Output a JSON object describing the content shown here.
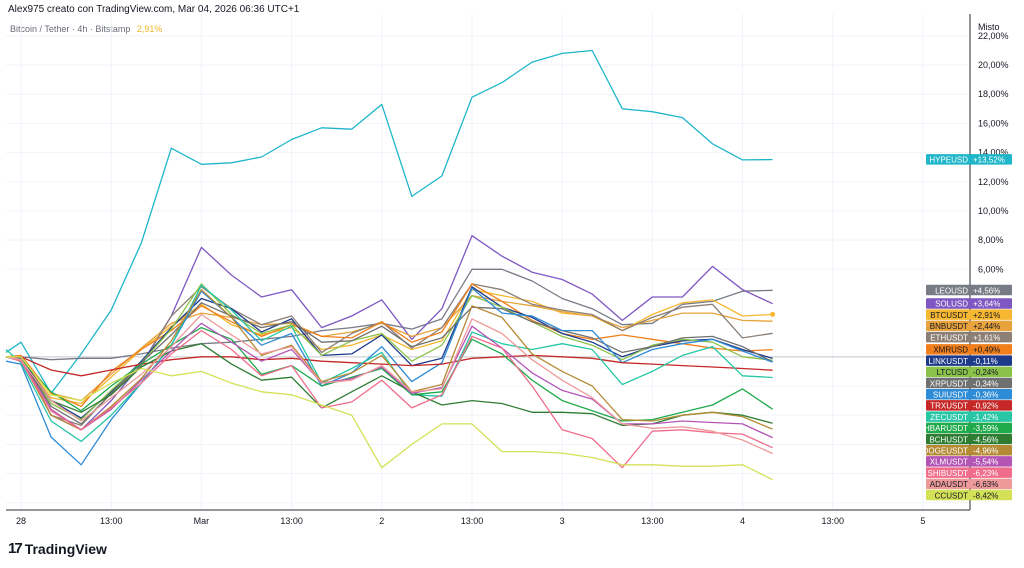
{
  "header": {
    "author_line": "Alex975 creato con TradingView.com, Mar 04, 2026 06:36 UTC+1",
    "symbol_line": "Bitcoin / Tether · 4h · Bitstamp",
    "symbol_change": "2,91%"
  },
  "brand": {
    "name": "TradingView",
    "logo_glyph": "17"
  },
  "chart_data": {
    "type": "line",
    "title": "Bitcoin / Tether · 4h · Bitstamp",
    "scale_mode": "Misto",
    "xlabel": "",
    "ylabel": "",
    "ylim": [
      -10.5,
      23.5
    ],
    "y_ticks": [
      6,
      8,
      10,
      12,
      14,
      16,
      18,
      20,
      22
    ],
    "y_tick_labels": [
      "6,00%",
      "8,00%",
      "10,00%",
      "12,00%",
      "14,00%",
      "16,00%",
      "18,00%",
      "20,00%",
      "22,00%"
    ],
    "x_ticks": [
      0,
      6,
      12,
      18,
      24,
      30,
      36,
      42,
      48,
      54,
      60
    ],
    "x_tick_labels": [
      "28",
      "13:00",
      "Mar",
      "13:00",
      "2",
      "13:00",
      "3",
      "13:00",
      "4",
      "13:00",
      "5"
    ],
    "xlim": [
      -1,
      63
    ],
    "series": [
      {
        "name": "HYPEUSD",
        "label": "+13,52%",
        "color": "#1fb6c9",
        "x": [
          -1,
          0,
          2,
          4,
          6,
          8,
          10,
          12,
          14,
          16,
          18,
          20,
          22,
          24,
          26,
          28,
          30,
          32,
          34,
          36,
          38,
          40,
          42,
          44,
          46,
          48,
          50
        ],
        "values": [
          0.3,
          1.0,
          -2.5,
          0.2,
          3.2,
          7.8,
          14.3,
          13.2,
          13.3,
          13.7,
          14.9,
          15.7,
          15.6,
          17.3,
          11.0,
          12.4,
          17.8,
          18.8,
          20.2,
          20.8,
          21.0,
          17.0,
          16.8,
          16.4,
          14.6,
          13.5,
          13.52
        ]
      },
      {
        "name": "LEOUSD",
        "label": "+4,56%",
        "color": "#787b86",
        "x": [
          -1,
          0,
          2,
          4,
          6,
          8,
          10,
          12,
          14,
          16,
          18,
          20,
          22,
          24,
          26,
          28,
          30,
          32,
          34,
          36,
          38,
          40,
          42,
          44,
          46,
          48,
          50
        ],
        "values": [
          0,
          0,
          -0.2,
          -0.1,
          -0.1,
          0.2,
          0.6,
          0.9,
          1.0,
          1.2,
          1.4,
          1.8,
          2.0,
          2.3,
          1.9,
          2.6,
          6.0,
          6.0,
          5.2,
          4.0,
          3.3,
          2.2,
          2.3,
          3.6,
          3.8,
          4.5,
          4.56
        ]
      },
      {
        "name": "SOLUSD",
        "label": "+3,64%",
        "color": "#7e57c2",
        "x": [
          -1,
          0,
          2,
          4,
          6,
          8,
          10,
          12,
          14,
          16,
          18,
          20,
          22,
          24,
          26,
          28,
          30,
          32,
          34,
          36,
          38,
          40,
          42,
          44,
          46,
          48,
          50
        ],
        "values": [
          0,
          -0.2,
          -4.0,
          -5.0,
          -3.0,
          -0.5,
          2.8,
          7.5,
          5.6,
          4.1,
          4.6,
          2.0,
          2.8,
          3.9,
          1.2,
          3.3,
          8.3,
          6.9,
          5.8,
          5.3,
          4.3,
          2.5,
          4.1,
          4.1,
          6.2,
          4.6,
          3.64
        ]
      },
      {
        "name": "BTCUSDT",
        "label": "+2,91%",
        "color": "#f7b731",
        "x": [
          -1,
          0,
          2,
          4,
          6,
          8,
          10,
          12,
          14,
          16,
          18,
          20,
          22,
          24,
          26,
          28,
          30,
          32,
          34,
          36,
          38,
          40,
          42,
          44,
          46,
          48,
          50
        ],
        "values": [
          0,
          -0.1,
          -2.8,
          -3.2,
          -1.4,
          0.5,
          2.1,
          3.6,
          2.2,
          1.5,
          2.0,
          0.5,
          0.8,
          1.5,
          0.5,
          1.1,
          4.6,
          4.2,
          3.8,
          3.0,
          2.8,
          1.8,
          2.9,
          3.7,
          3.9,
          2.8,
          2.91
        ]
      },
      {
        "name": "BNBUSDT",
        "label": "+2,44%",
        "color": "#e8a33c",
        "x": [
          -1,
          0,
          2,
          4,
          6,
          8,
          10,
          12,
          14,
          16,
          18,
          20,
          22,
          24,
          26,
          28,
          30,
          32,
          34,
          36,
          38,
          40,
          42,
          44,
          46,
          48,
          50
        ],
        "values": [
          0,
          -0.1,
          -2.5,
          -3.0,
          -1.2,
          0.6,
          2.3,
          3.0,
          2.7,
          2.2,
          2.3,
          1.4,
          1.7,
          2.3,
          1.4,
          2.0,
          4.2,
          3.8,
          3.5,
          3.1,
          2.8,
          2.0,
          2.5,
          3.0,
          3.0,
          2.5,
          2.44
        ]
      },
      {
        "name": "ETHUSDT",
        "label": "+1,61%",
        "color": "#8c7f76",
        "x": [
          -1,
          0,
          2,
          4,
          6,
          8,
          10,
          12,
          14,
          16,
          18,
          20,
          22,
          24,
          26,
          28,
          30,
          32,
          34,
          36,
          38,
          40,
          42,
          44,
          46,
          48,
          50
        ],
        "values": [
          0,
          -0.2,
          -4.0,
          -4.7,
          -2.5,
          -0.6,
          2.8,
          4.8,
          3.3,
          2.2,
          2.8,
          0.3,
          1.6,
          2.4,
          0.6,
          2.0,
          5.0,
          4.6,
          3.6,
          3.2,
          2.9,
          1.8,
          2.7,
          3.4,
          3.6,
          1.3,
          1.61
        ]
      },
      {
        "name": "XMRUSD",
        "label": "+0,49%",
        "color": "#f07f1c",
        "x": [
          -1,
          0,
          2,
          4,
          6,
          8,
          10,
          12,
          14,
          16,
          18,
          20,
          22,
          24,
          26,
          28,
          30,
          32,
          34,
          36,
          38,
          40,
          42,
          44,
          46,
          48,
          50
        ],
        "values": [
          0,
          0.1,
          -2.5,
          -3.4,
          -1.0,
          0.5,
          1.8,
          3.5,
          2.4,
          1.4,
          2.2,
          1.4,
          1.3,
          2.4,
          1.0,
          1.7,
          5.0,
          3.8,
          2.5,
          1.6,
          1.2,
          1.5,
          1.2,
          0.9,
          0.6,
          0.4,
          0.49
        ]
      },
      {
        "name": "LINKUSDT",
        "label": "-0,11%",
        "color": "#1e3a8a",
        "x": [
          -1,
          0,
          2,
          4,
          6,
          8,
          10,
          12,
          14,
          16,
          18,
          20,
          22,
          24,
          26,
          28,
          30,
          32,
          34,
          36,
          38,
          40,
          42,
          44,
          46,
          48,
          50
        ],
        "values": [
          0,
          -0.1,
          -3.0,
          -4.2,
          -2.4,
          -0.3,
          2.0,
          4.0,
          3.3,
          1.7,
          2.6,
          0.1,
          0.2,
          1.5,
          -0.6,
          -0.1,
          4.8,
          3.4,
          2.7,
          1.6,
          1.0,
          0,
          0.7,
          1.1,
          1.2,
          0.5,
          -0.11
        ]
      },
      {
        "name": "LTCUSD",
        "label": "-0,24%",
        "color": "#8bc34a",
        "x": [
          -1,
          0,
          2,
          4,
          6,
          8,
          10,
          12,
          14,
          16,
          18,
          20,
          22,
          24,
          26,
          28,
          30,
          32,
          34,
          36,
          38,
          40,
          42,
          44,
          46,
          48,
          50
        ],
        "values": [
          0,
          -0.2,
          -3.2,
          -4.3,
          -2.3,
          -0.4,
          1.9,
          5.0,
          2.9,
          1.6,
          2.2,
          0.1,
          1.1,
          1.6,
          -0.3,
          0.8,
          4.2,
          3.4,
          2.4,
          1.4,
          0.8,
          -0.2,
          0.8,
          1.2,
          1.0,
          0,
          -0.24
        ]
      },
      {
        "name": "XRPUSDT",
        "label": "-0,34%",
        "color": "#707070",
        "x": [
          -1,
          0,
          2,
          4,
          6,
          8,
          10,
          12,
          14,
          16,
          18,
          20,
          22,
          24,
          26,
          28,
          30,
          32,
          34,
          36,
          38,
          40,
          42,
          44,
          46,
          48,
          50
        ],
        "values": [
          0,
          -0.1,
          -3.4,
          -4.6,
          -2.5,
          -0.4,
          1.5,
          3.7,
          2.8,
          2.0,
          2.4,
          1.0,
          1.1,
          2.1,
          0.7,
          1.3,
          3.4,
          3.3,
          2.4,
          1.8,
          1.3,
          0.3,
          0.7,
          1.3,
          1.4,
          0.7,
          -0.34
        ]
      },
      {
        "name": "SUIUSDT",
        "label": "-0,36%",
        "color": "#2e8bd6",
        "x": [
          -1,
          0,
          2,
          4,
          6,
          8,
          10,
          12,
          14,
          16,
          18,
          20,
          22,
          24,
          26,
          28,
          30,
          32,
          34,
          36,
          38,
          40,
          42,
          44,
          46,
          48,
          50
        ],
        "values": [
          -0.3,
          -0.5,
          -5.5,
          -7.4,
          -4.3,
          -1.8,
          0.8,
          4.5,
          2.7,
          0.8,
          1.6,
          -2.0,
          -1.1,
          0.7,
          -1.7,
          -0.4,
          4.7,
          3.0,
          2.8,
          1.8,
          1.8,
          -0.4,
          0.5,
          0.9,
          1.2,
          0.4,
          -0.36
        ]
      },
      {
        "name": "TRXUSDT",
        "label": "-0,92%",
        "color": "#c62828",
        "x": [
          -1,
          0,
          2,
          4,
          6,
          8,
          10,
          12,
          14,
          16,
          18,
          20,
          22,
          24,
          26,
          28,
          30,
          32,
          34,
          36,
          38,
          40,
          42,
          44,
          46,
          48,
          50
        ],
        "values": [
          0,
          0,
          -0.9,
          -1.3,
          -0.9,
          -0.5,
          -0.2,
          0,
          0,
          -0.2,
          -0.1,
          -0.3,
          -0.4,
          -0.5,
          -0.6,
          -0.5,
          -0.1,
          0,
          0.1,
          0,
          -0.1,
          -0.4,
          -0.5,
          -0.6,
          -0.7,
          -0.8,
          -0.92
        ]
      },
      {
        "name": "ZECUSDT",
        "label": "-1,42%",
        "color": "#26c6a6",
        "x": [
          -1,
          0,
          2,
          4,
          6,
          8,
          10,
          12,
          14,
          16,
          18,
          20,
          22,
          24,
          26,
          28,
          30,
          32,
          34,
          36,
          38,
          40,
          42,
          44,
          46,
          48,
          50
        ],
        "values": [
          0.5,
          -0.4,
          -4.4,
          -5.8,
          -4.0,
          -1.8,
          0.8,
          4.9,
          3.2,
          1.1,
          2.1,
          -1.8,
          -0.8,
          0.3,
          -2.6,
          -2.7,
          1.7,
          0.9,
          0.5,
          0.9,
          0.5,
          -1.9,
          -1.0,
          0.1,
          0.7,
          -1.3,
          -1.42
        ]
      },
      {
        "name": "HBARUSDT",
        "label": "-3,59%",
        "color": "#1faa4c",
        "x": [
          -1,
          0,
          2,
          4,
          6,
          8,
          10,
          12,
          14,
          16,
          18,
          20,
          22,
          24,
          26,
          28,
          30,
          32,
          34,
          36,
          38,
          40,
          42,
          44,
          46,
          48,
          50
        ],
        "values": [
          0,
          -0.2,
          -2.4,
          -3.7,
          -2.0,
          -0.5,
          0.8,
          2.0,
          1.2,
          -1.2,
          -0.6,
          -2.0,
          -1.4,
          -0.8,
          -2.6,
          -2.4,
          1.2,
          0.2,
          -1.6,
          -3.0,
          -3.7,
          -4.4,
          -4.3,
          -3.8,
          -3.3,
          -2.2,
          -3.59
        ]
      },
      {
        "name": "BCHUSDT",
        "label": "-4,56%",
        "color": "#2e7d32",
        "x": [
          -1,
          0,
          2,
          4,
          6,
          8,
          10,
          12,
          14,
          16,
          18,
          20,
          22,
          24,
          26,
          28,
          30,
          32,
          34,
          36,
          38,
          40,
          42,
          44,
          46,
          48,
          50
        ],
        "values": [
          0,
          -0.3,
          -3.0,
          -3.8,
          -2.6,
          -0.7,
          0.4,
          0.9,
          -0.5,
          -1.6,
          -1.4,
          -3.5,
          -2.4,
          -1.3,
          -2.4,
          -3.3,
          -3.0,
          -3.2,
          -3.8,
          -3.8,
          -3.9,
          -4.7,
          -4.6,
          -4.0,
          -3.8,
          -4.0,
          -4.56
        ]
      },
      {
        "name": "DOGEUSDT",
        "label": "-4,96%",
        "color": "#b58a34",
        "x": [
          -1,
          0,
          2,
          4,
          6,
          8,
          10,
          12,
          14,
          16,
          18,
          20,
          22,
          24,
          26,
          28,
          30,
          32,
          34,
          36,
          38,
          40,
          42,
          44,
          46,
          48,
          50
        ],
        "values": [
          0,
          -0.2,
          -4.0,
          -5.0,
          -3.4,
          -1.5,
          1.1,
          4.6,
          2.7,
          0.1,
          0.8,
          -1.7,
          -1.1,
          0.1,
          -2.4,
          -1.9,
          3.5,
          2.7,
          0.2,
          -1.0,
          -2.0,
          -4.3,
          -4.4,
          -4.0,
          -3.8,
          -4.1,
          -4.96
        ]
      },
      {
        "name": "XLMUSDT",
        "label": "-5,54%",
        "color": "#b455b6",
        "x": [
          -1,
          0,
          2,
          4,
          6,
          8,
          10,
          12,
          14,
          16,
          18,
          20,
          22,
          24,
          26,
          28,
          30,
          32,
          34,
          36,
          38,
          40,
          42,
          44,
          46,
          48,
          50
        ],
        "values": [
          0,
          -0.2,
          -3.6,
          -5.0,
          -3.6,
          -1.6,
          0.4,
          2.3,
          1.0,
          -0.3,
          0.5,
          -1.8,
          -1.5,
          -0.7,
          -2.5,
          -2.1,
          2.1,
          0.6,
          -1.1,
          -2.3,
          -2.9,
          -4.6,
          -4.6,
          -4.4,
          -4.5,
          -4.6,
          -5.54
        ]
      },
      {
        "name": "SHIBUSDT",
        "label": "-6,23%",
        "color": "#f06d8c",
        "x": [
          -1,
          0,
          2,
          4,
          6,
          8,
          10,
          12,
          14,
          16,
          18,
          20,
          22,
          24,
          26,
          28,
          30,
          32,
          34,
          36,
          38,
          40,
          42,
          44,
          46,
          48,
          50
        ],
        "values": [
          0,
          -0.3,
          -3.7,
          -5.0,
          -3.5,
          -1.8,
          0.2,
          1.8,
          0.5,
          -1.3,
          -0.6,
          -3.5,
          -3.1,
          -1.6,
          -3.5,
          -2.6,
          1.4,
          0.6,
          -2.0,
          -5.0,
          -5.6,
          -7.6,
          -5.1,
          -5.0,
          -5.2,
          -5.3,
          -6.23
        ]
      },
      {
        "name": "ADAUSDT",
        "label": "-6,63%",
        "color": "#ef9a9a",
        "x": [
          -1,
          0,
          2,
          4,
          6,
          8,
          10,
          12,
          14,
          16,
          18,
          20,
          22,
          24,
          26,
          28,
          30,
          32,
          34,
          36,
          38,
          40,
          42,
          44,
          46,
          48,
          50
        ],
        "values": [
          0,
          -0.2,
          -3.0,
          -4.4,
          -2.8,
          -1.2,
          0.7,
          2.9,
          1.5,
          0.2,
          0.7,
          -1.8,
          -1.6,
          -0.6,
          -2.4,
          -2.2,
          2.6,
          1.6,
          -0.2,
          -1.6,
          -2.8,
          -4.6,
          -4.9,
          -4.8,
          -5.1,
          -5.7,
          -6.63
        ]
      },
      {
        "name": "CCUSDT",
        "label": "-8,42%",
        "color": "#d4e157",
        "x": [
          -1,
          0,
          2,
          4,
          6,
          8,
          10,
          12,
          14,
          16,
          18,
          20,
          22,
          24,
          26,
          28,
          30,
          32,
          34,
          36,
          38,
          40,
          42,
          44,
          46,
          48,
          50
        ],
        "values": [
          0,
          0,
          -2.6,
          -3.0,
          -1.8,
          -0.8,
          -1.3,
          -1.0,
          -1.8,
          -2.4,
          -2.6,
          -3.3,
          -4.0,
          -7.6,
          -6.0,
          -4.6,
          -4.6,
          -6.5,
          -6.5,
          -6.6,
          -6.9,
          -7.4,
          -7.4,
          -7.5,
          -7.5,
          -7.4,
          -8.42
        ]
      }
    ]
  }
}
